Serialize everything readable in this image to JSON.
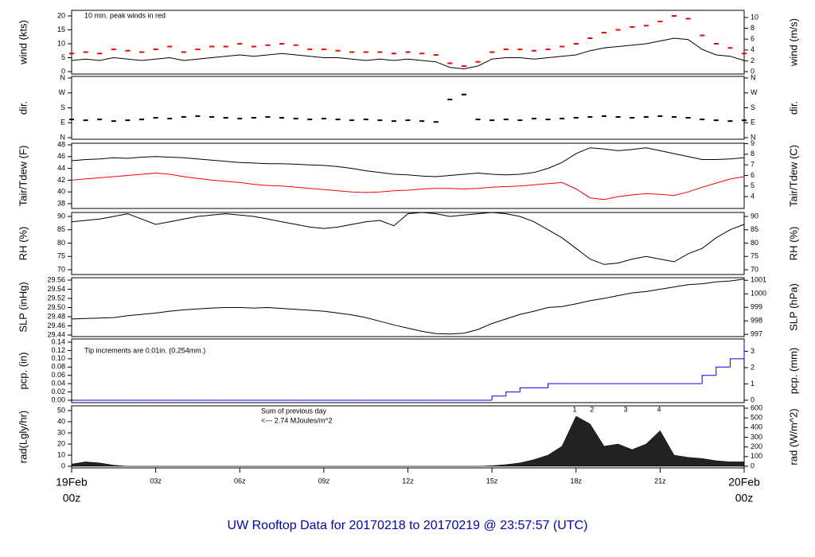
{
  "caption": "UW Rooftop Data for 20170218  to  20170219 @ 23:57:57  (UTC)",
  "chart_data": [
    {
      "type": "line",
      "ylabel": "wind (kts)",
      "y2label": "wind (m/s)",
      "annotations": [
        {
          "text": "10 min. peak winds in red",
          "color": "#ff0000"
        }
      ],
      "x": [
        0,
        0.5,
        1,
        1.5,
        2,
        2.5,
        3,
        3.5,
        4,
        4.5,
        5,
        5.5,
        6,
        6.5,
        7,
        7.5,
        8,
        8.5,
        9,
        9.5,
        10,
        10.5,
        11,
        11.5,
        12,
        12.5,
        13,
        13.5,
        14,
        14.5,
        15,
        15.5,
        16,
        16.5,
        17,
        17.5,
        18,
        18.5,
        19,
        19.5,
        20,
        20.5,
        21,
        21.5,
        22,
        22.5,
        23,
        23.5,
        24
      ],
      "xlim": [
        0,
        24
      ],
      "ylim": [
        -0.86,
        22
      ],
      "yticks": [
        0,
        5,
        10,
        15,
        20
      ],
      "y2lim": [
        -0.44,
        11.32
      ],
      "y2ticks": [
        0,
        2,
        4,
        6,
        8,
        10
      ],
      "series": [
        {
          "color": "#000000",
          "values": [
            4,
            4.5,
            4,
            5,
            4.5,
            4,
            4.5,
            5,
            4,
            4.5,
            5,
            5.5,
            6,
            5.5,
            6,
            6.5,
            6,
            5.5,
            5,
            5,
            4.5,
            4,
            4.5,
            4,
            4.5,
            4,
            3.5,
            1.5,
            1,
            2,
            4.5,
            5,
            5,
            4.5,
            5,
            5.5,
            6,
            7.5,
            8.5,
            9,
            9.5,
            10,
            11,
            12,
            11.5,
            8,
            6,
            5.5,
            4
          ]
        },
        {
          "color": "#ff0000",
          "marker": "dash",
          "values": [
            6.5,
            7,
            6.5,
            8,
            7.5,
            7,
            8,
            9,
            7,
            8,
            9,
            9,
            10,
            9,
            9.5,
            10,
            9.5,
            8,
            8,
            7.5,
            7,
            7,
            7,
            6.5,
            7,
            6.5,
            6,
            3,
            2,
            3.5,
            7,
            8,
            8,
            7.5,
            8,
            9,
            10,
            12,
            14,
            15,
            16,
            16.5,
            18,
            20,
            19,
            13,
            10,
            8.5,
            6.5
          ]
        }
      ]
    },
    {
      "type": "scatter",
      "ylabel": "dir.",
      "y2label": "dir.",
      "x": [
        0,
        0.5,
        1,
        1.5,
        2,
        2.5,
        3,
        3.5,
        4,
        4.5,
        5,
        5.5,
        6,
        6.5,
        7,
        7.5,
        8,
        8.5,
        9,
        9.5,
        10,
        10.5,
        11,
        11.5,
        12,
        12.5,
        13,
        13.5,
        14,
        14.5,
        15,
        15.5,
        16,
        16.5,
        17,
        17.5,
        18,
        18.5,
        19,
        19.5,
        20,
        20.5,
        21,
        21.5,
        22,
        22.5,
        23,
        23.5,
        24
      ],
      "xlim": [
        0,
        24
      ],
      "ylim": [
        -9.5,
        369.5
      ],
      "yticks": [
        {
          "value": 0,
          "label": "N"
        },
        {
          "value": 90,
          "label": "E"
        },
        {
          "value": 180,
          "label": "S"
        },
        {
          "value": 270,
          "label": "W"
        },
        {
          "value": 360,
          "label": "N"
        }
      ],
      "y2lim": [
        -9.5,
        369.5
      ],
      "y2ticks": [
        {
          "value": 0,
          "label": "N"
        },
        {
          "value": 90,
          "label": "E"
        },
        {
          "value": 180,
          "label": "S"
        },
        {
          "value": 270,
          "label": "W"
        },
        {
          "value": 360,
          "label": "N"
        }
      ],
      "series": [
        {
          "color": "#000000",
          "values": [
            110,
            105,
            110,
            100,
            105,
            110,
            120,
            115,
            125,
            130,
            125,
            120,
            115,
            120,
            125,
            120,
            115,
            110,
            115,
            110,
            105,
            110,
            105,
            100,
            105,
            100,
            95,
            230,
            260,
            110,
            105,
            110,
            105,
            115,
            110,
            115,
            120,
            125,
            130,
            125,
            120,
            125,
            130,
            125,
            120,
            110,
            105,
            100,
            105
          ]
        }
      ]
    },
    {
      "type": "line",
      "ylabel": "Tair/Tdew (F)",
      "y2label": "Tair/Tdew (C)",
      "x": [
        0,
        0.5,
        1,
        1.5,
        2,
        2.5,
        3,
        3.5,
        4,
        4.5,
        5,
        5.5,
        6,
        6.5,
        7,
        7.5,
        8,
        8.5,
        9,
        9.5,
        10,
        10.5,
        11,
        11.5,
        12,
        12.5,
        13,
        13.5,
        14,
        14.5,
        15,
        15.5,
        16,
        16.5,
        17,
        17.5,
        18,
        18.5,
        19,
        19.5,
        20,
        20.5,
        21,
        21.5,
        22,
        22.5,
        23,
        23.5,
        24
      ],
      "xlim": [
        0,
        24
      ],
      "ylim": [
        37.19,
        48.27
      ],
      "yticks": [
        38,
        40,
        42,
        44,
        46,
        48
      ],
      "y2lim": [
        2.88,
        9.04
      ],
      "y2ticks": [
        4,
        5,
        6,
        7,
        8,
        9
      ],
      "series": [
        {
          "color": "#000000",
          "values": [
            45.3,
            45.5,
            45.6,
            45.8,
            45.7,
            45.9,
            46,
            45.9,
            45.8,
            45.6,
            45.4,
            45.2,
            45,
            44.9,
            44.8,
            44.8,
            44.7,
            44.6,
            44.5,
            44.3,
            44,
            43.6,
            43.3,
            43,
            42.9,
            42.7,
            42.6,
            42.8,
            43,
            43.2,
            43,
            42.9,
            43,
            43.3,
            44,
            45,
            46.5,
            47.5,
            47.3,
            47,
            47.2,
            47.5,
            47,
            46.5,
            46,
            45.5,
            45.5,
            45.6,
            45.8
          ]
        },
        {
          "color": "#ff0000",
          "values": [
            42,
            42.2,
            42.4,
            42.6,
            42.8,
            43,
            43.2,
            43,
            42.6,
            42.3,
            42,
            41.8,
            41.6,
            41.3,
            41.1,
            41,
            40.8,
            40.6,
            40.4,
            40.2,
            40,
            39.9,
            40,
            40.2,
            40.3,
            40.5,
            40.6,
            40.6,
            40.5,
            40.6,
            40.8,
            40.9,
            41,
            41.2,
            41.4,
            41.6,
            40.5,
            39,
            38.7,
            39.2,
            39.5,
            39.7,
            39.6,
            39.4,
            40,
            40.8,
            41.5,
            42.2,
            42.6
          ]
        }
      ]
    },
    {
      "type": "line",
      "ylabel": "RH (%)",
      "y2label": "RH (%)",
      "x": [
        0,
        0.5,
        1,
        1.5,
        2,
        2.5,
        3,
        3.5,
        4,
        4.5,
        5,
        5.5,
        6,
        6.5,
        7,
        7.5,
        8,
        8.5,
        9,
        9.5,
        10,
        10.5,
        11,
        11.5,
        12,
        12.5,
        13,
        13.5,
        14,
        14.5,
        15,
        15.5,
        16,
        16.5,
        17,
        17.5,
        18,
        18.5,
        19,
        19.5,
        20,
        20.5,
        21,
        21.5,
        22,
        22.5,
        23,
        23.5,
        24
      ],
      "xlim": [
        0,
        24
      ],
      "ylim": [
        68.21,
        91.49
      ],
      "yticks": [
        70,
        75,
        80,
        85,
        90
      ],
      "y2lim": [
        68.21,
        91.49
      ],
      "y2ticks": [
        70,
        75,
        80,
        85,
        90
      ],
      "series": [
        {
          "color": "#000000",
          "values": [
            88,
            88.5,
            89,
            90,
            91,
            89,
            87,
            88,
            89,
            90,
            90.5,
            91,
            90.5,
            90,
            89,
            88,
            87,
            86,
            85.5,
            86,
            87,
            88,
            88.5,
            86.5,
            91,
            91.5,
            91,
            90,
            90.5,
            91,
            91.5,
            91,
            90,
            88,
            85,
            82,
            78,
            74,
            72,
            72.5,
            74,
            75,
            74,
            73,
            76,
            78,
            82,
            85,
            87
          ]
        }
      ]
    },
    {
      "type": "line",
      "ylabel": "SLP (inHg)",
      "y2label": "SLP (hPa)",
      "x": [
        0,
        0.5,
        1,
        1.5,
        2,
        2.5,
        3,
        3.5,
        4,
        4.5,
        5,
        5.5,
        6,
        6.5,
        7,
        7.5,
        8,
        8.5,
        9,
        9.5,
        10,
        10.5,
        11,
        11.5,
        12,
        12.5,
        13,
        13.5,
        14,
        14.5,
        15,
        15.5,
        16,
        16.5,
        17,
        17.5,
        18,
        18.5,
        19,
        19.5,
        20,
        20.5,
        21,
        21.5,
        22,
        22.5,
        23,
        23.5,
        24
      ],
      "xlim": [
        0,
        24
      ],
      "ylim": [
        29.4365,
        29.5652
      ],
      "yticks": [
        29.44,
        29.46,
        29.48,
        {
          "value": 29.5,
          "label": "29.50"
        },
        29.52,
        29.54,
        29.56
      ],
      "y2lim": [
        996.84,
        1001.19
      ],
      "y2ticks": [
        997,
        998,
        999,
        1000,
        1001
      ],
      "series": [
        {
          "color": "#000000",
          "values": [
            29.475,
            29.476,
            29.477,
            29.478,
            29.482,
            29.485,
            29.488,
            29.492,
            29.495,
            29.497,
            29.499,
            29.5,
            29.5,
            29.499,
            29.5,
            29.498,
            29.496,
            29.494,
            29.492,
            29.488,
            29.484,
            29.478,
            29.47,
            29.462,
            29.455,
            29.448,
            29.443,
            29.442,
            29.444,
            29.452,
            29.465,
            29.475,
            29.485,
            29.492,
            29.5,
            29.502,
            29.508,
            29.515,
            29.52,
            29.526,
            29.532,
            29.535,
            29.54,
            29.545,
            29.55,
            29.552,
            29.556,
            29.558,
            29.562
          ]
        }
      ]
    },
    {
      "type": "step",
      "ylabel": "pcp. (in)",
      "y2label": "pcp. (mm)",
      "annotations": [
        {
          "text": "Tip increments are 0.01in. (0.254mm.)",
          "color": "#0000ff"
        }
      ],
      "x": [
        0,
        0.5,
        1,
        1.5,
        2,
        2.5,
        3,
        3.5,
        4,
        4.5,
        5,
        5.5,
        6,
        6.5,
        7,
        7.5,
        8,
        8.5,
        9,
        9.5,
        10,
        10.5,
        11,
        11.5,
        12,
        12.5,
        13,
        13.5,
        14,
        14.5,
        15,
        15.5,
        16,
        16.5,
        17,
        17.5,
        18,
        18.5,
        19,
        19.5,
        20,
        20.5,
        21,
        21.5,
        22,
        22.5,
        23,
        23.5,
        24
      ],
      "xlim": [
        0,
        24
      ],
      "ylim": [
        -0.00576,
        0.1477
      ],
      "yticks": [
        {
          "value": 0,
          "label": "0.00"
        },
        0.02,
        0.04,
        0.06,
        0.08,
        {
          "value": 0.1,
          "label": "0.10"
        },
        0.12,
        0.14
      ],
      "y2lim": [
        -0.146,
        3.752
      ],
      "y2ticks": [
        0,
        1,
        2,
        3
      ],
      "series": [
        {
          "color": "#0000ff",
          "values": [
            0,
            0,
            0,
            0,
            0,
            0,
            0,
            0,
            0,
            0,
            0,
            0,
            0,
            0,
            0,
            0,
            0,
            0,
            0,
            0,
            0,
            0,
            0,
            0,
            0,
            0,
            0,
            0,
            0,
            0,
            0.01,
            0.02,
            0.03,
            0.03,
            0.04,
            0.04,
            0.04,
            0.04,
            0.04,
            0.04,
            0.04,
            0.04,
            0.04,
            0.04,
            0.04,
            0.06,
            0.08,
            0.1,
            0.14
          ]
        }
      ]
    },
    {
      "type": "area",
      "ylabel": "rad(Lgly/hr)",
      "y2label": "rad (W/m^2)",
      "annotations": [
        {
          "text": "Sum of previous day",
          "color": "#9900cc"
        },
        {
          "text": "<--- 2.74 MJoules/m^2",
          "color": "#9900cc"
        }
      ],
      "hour_markers": [
        {
          "x": 17.95,
          "label": "1"
        },
        {
          "x": 18.57,
          "label": "2"
        },
        {
          "x": 19.77,
          "label": "3"
        },
        {
          "x": 20.96,
          "label": "4"
        }
      ],
      "x": [
        0,
        0.5,
        1,
        1.5,
        2,
        2.5,
        3,
        3.5,
        4,
        4.5,
        5,
        5.5,
        6,
        6.5,
        7,
        7.5,
        8,
        8.5,
        9,
        9.5,
        10,
        10.5,
        11,
        11.5,
        12,
        12.5,
        13,
        13.5,
        14,
        14.5,
        15,
        15.5,
        16,
        16.5,
        17,
        17.5,
        18,
        18.5,
        19,
        19.5,
        20,
        20.5,
        21,
        21.5,
        22,
        22.5,
        23,
        23.5,
        24
      ],
      "xlim": [
        0,
        24
      ],
      "ylim": [
        -1.43,
        54.29
      ],
      "yticks": [
        0,
        10,
        20,
        30,
        40,
        50
      ],
      "y2lim": [
        -16.4,
        624.7
      ],
      "y2ticks": [
        0,
        100,
        200,
        300,
        400,
        500,
        600
      ],
      "xticks": [
        {
          "value": 0,
          "label": "00z"
        },
        {
          "value": 3,
          "label": "03z"
        },
        {
          "value": 6,
          "label": "06z"
        },
        {
          "value": 9,
          "label": "09z"
        },
        {
          "value": 12,
          "label": "12z"
        },
        {
          "value": 15,
          "label": "15z"
        },
        {
          "value": 18,
          "label": "18z"
        },
        {
          "value": 21,
          "label": "21z"
        },
        {
          "value": 24,
          "label": "00z"
        }
      ],
      "xtick_dates": [
        {
          "value": 0,
          "label": "19Feb"
        },
        {
          "value": 24,
          "label": "20Feb"
        }
      ],
      "series": [
        {
          "color": "#222222",
          "values": [
            2,
            4,
            3,
            1,
            0,
            0,
            0,
            0,
            0,
            0,
            0,
            0,
            0,
            0,
            0,
            0,
            0,
            0,
            0,
            0,
            0,
            0,
            0,
            0,
            0,
            0,
            0,
            0,
            0,
            0,
            0.5,
            1.5,
            3,
            6,
            10,
            18,
            45,
            38,
            18,
            20,
            15,
            20,
            32,
            10,
            8,
            7,
            5,
            4,
            4
          ]
        }
      ]
    }
  ]
}
